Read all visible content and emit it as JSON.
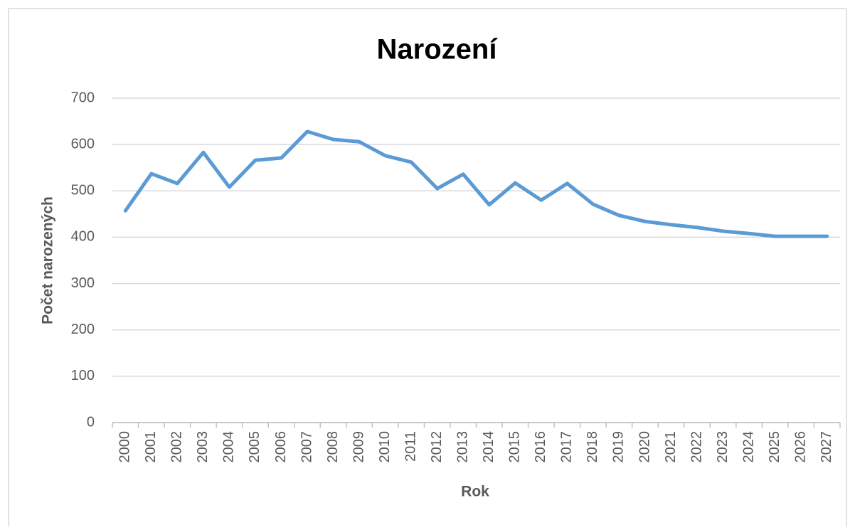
{
  "chart_data": {
    "type": "line",
    "title": "Narození",
    "x_label": "Rok",
    "y_label": "Počet narozených",
    "categories": [
      "2000",
      "2001",
      "2002",
      "2003",
      "2004",
      "2005",
      "2006",
      "2007",
      "2008",
      "2009",
      "2010",
      "2011",
      "2012",
      "2013",
      "2014",
      "2015",
      "2016",
      "2017",
      "2018",
      "2019",
      "2020",
      "2021",
      "2022",
      "2023",
      "2024",
      "2025",
      "2026",
      "2027"
    ],
    "series": [
      {
        "name": "Narození",
        "color": "#5b9bd5",
        "values": [
          457,
          537,
          516,
          583,
          508,
          566,
          571,
          628,
          611,
          606,
          576,
          562,
          505,
          536,
          470,
          517,
          480,
          516,
          471,
          447,
          434,
          427,
          421,
          413,
          408,
          402,
          402,
          402
        ]
      }
    ],
    "ylim": [
      0,
      700
    ],
    "yticks": [
      0,
      100,
      200,
      300,
      400,
      500,
      600,
      700
    ],
    "grid": true
  }
}
